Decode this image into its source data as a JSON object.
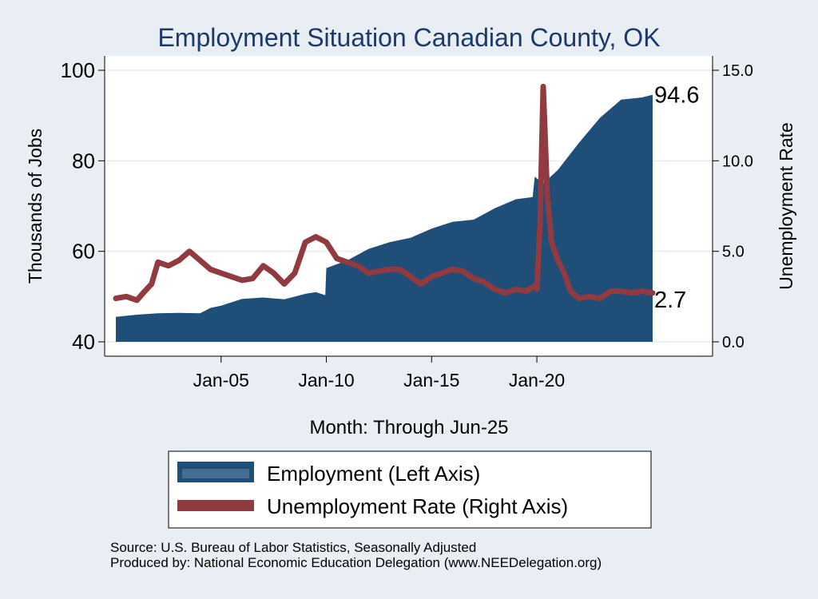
{
  "chart_data": {
    "type": "area",
    "title": "Employment Situation Canadian  County, OK",
    "xlabel": "Month: Through Jun-25",
    "ylabel_left": "Thousands of Jobs",
    "ylabel_right": "Unemployment Rate",
    "x_ticks": [
      "Jan-05",
      "Jan-10",
      "Jan-15",
      "Jan-20"
    ],
    "x_tick_years": [
      2005,
      2010,
      2015,
      2020
    ],
    "xlim": [
      1999.5,
      2028.0
    ],
    "left_ylim": [
      40,
      100
    ],
    "left_ticks": [
      40,
      60,
      80,
      100
    ],
    "right_ylim": [
      0,
      15
    ],
    "right_ticks": [
      "0.0",
      "5.0",
      "10.0",
      "15.0"
    ],
    "right_tick_values": [
      0,
      5,
      10,
      15
    ],
    "grid": true,
    "legend_position": "bottom",
    "end_labels": {
      "employment": "94.6",
      "unemployment": "2.7"
    },
    "colors": {
      "employment": "#1f4e79",
      "unemployment": "#913a3f",
      "title": "#1b3a6b",
      "plot_bg": "#ffffff",
      "page_bg": "#e8eef3"
    },
    "series": [
      {
        "name": "Employment (Left Axis)",
        "axis": "left",
        "kind": "area",
        "points": [
          [
            2000.0,
            45.5
          ],
          [
            2001.0,
            46.0
          ],
          [
            2002.0,
            46.3
          ],
          [
            2003.0,
            46.4
          ],
          [
            2004.0,
            46.3
          ],
          [
            2004.5,
            47.5
          ],
          [
            2005.0,
            48.0
          ],
          [
            2006.0,
            49.5
          ],
          [
            2007.0,
            49.8
          ],
          [
            2008.0,
            49.4
          ],
          [
            2009.0,
            50.6
          ],
          [
            2009.5,
            51.0
          ],
          [
            2009.95,
            50.3
          ],
          [
            2010.0,
            56.3
          ],
          [
            2011.0,
            58.0
          ],
          [
            2012.0,
            60.5
          ],
          [
            2013.0,
            62.0
          ],
          [
            2014.0,
            63.0
          ],
          [
            2015.0,
            65.0
          ],
          [
            2016.0,
            66.5
          ],
          [
            2017.0,
            67.0
          ],
          [
            2018.0,
            69.5
          ],
          [
            2019.0,
            71.5
          ],
          [
            2019.8,
            72.0
          ],
          [
            2019.9,
            76.5
          ],
          [
            2020.3,
            75.0
          ],
          [
            2021.0,
            78.0
          ],
          [
            2022.0,
            84.0
          ],
          [
            2023.0,
            89.5
          ],
          [
            2024.0,
            93.5
          ],
          [
            2025.0,
            94.0
          ],
          [
            2025.5,
            94.6
          ]
        ]
      },
      {
        "name": "Unemployment Rate (Right Axis)",
        "axis": "right",
        "kind": "line",
        "points": [
          [
            2000.0,
            2.4
          ],
          [
            2000.5,
            2.5
          ],
          [
            2001.0,
            2.3
          ],
          [
            2001.3,
            2.7
          ],
          [
            2001.7,
            3.2
          ],
          [
            2002.0,
            4.4
          ],
          [
            2002.5,
            4.2
          ],
          [
            2003.0,
            4.5
          ],
          [
            2003.5,
            5.0
          ],
          [
            2004.0,
            4.5
          ],
          [
            2004.5,
            4.0
          ],
          [
            2005.0,
            3.8
          ],
          [
            2005.5,
            3.6
          ],
          [
            2006.0,
            3.4
          ],
          [
            2006.5,
            3.5
          ],
          [
            2007.0,
            4.2
          ],
          [
            2007.5,
            3.8
          ],
          [
            2008.0,
            3.2
          ],
          [
            2008.5,
            3.8
          ],
          [
            2009.0,
            5.5
          ],
          [
            2009.5,
            5.8
          ],
          [
            2010.0,
            5.5
          ],
          [
            2010.5,
            4.6
          ],
          [
            2011.0,
            4.4
          ],
          [
            2011.5,
            4.2
          ],
          [
            2012.0,
            3.8
          ],
          [
            2012.5,
            3.9
          ],
          [
            2013.0,
            4.0
          ],
          [
            2013.5,
            4.0
          ],
          [
            2014.0,
            3.6
          ],
          [
            2014.5,
            3.2
          ],
          [
            2015.0,
            3.6
          ],
          [
            2015.5,
            3.8
          ],
          [
            2016.0,
            4.0
          ],
          [
            2016.5,
            3.9
          ],
          [
            2017.0,
            3.5
          ],
          [
            2017.5,
            3.3
          ],
          [
            2018.0,
            2.9
          ],
          [
            2018.5,
            2.7
          ],
          [
            2019.0,
            2.9
          ],
          [
            2019.5,
            2.8
          ],
          [
            2019.9,
            3.1
          ],
          [
            2020.0,
            2.9
          ],
          [
            2020.15,
            6.5
          ],
          [
            2020.3,
            14.1
          ],
          [
            2020.5,
            8.0
          ],
          [
            2020.7,
            5.5
          ],
          [
            2021.0,
            4.5
          ],
          [
            2021.3,
            3.8
          ],
          [
            2021.6,
            2.8
          ],
          [
            2022.0,
            2.4
          ],
          [
            2022.5,
            2.5
          ],
          [
            2023.0,
            2.4
          ],
          [
            2023.5,
            2.8
          ],
          [
            2024.0,
            2.8
          ],
          [
            2024.5,
            2.7
          ],
          [
            2025.0,
            2.8
          ],
          [
            2025.5,
            2.7
          ]
        ]
      }
    ],
    "source_note": "Source: U.S. Bureau of Labor Statistics, Seasonally Adjusted",
    "producer_note": "Produced by: National Economic Education Delegation (www.NEEDelegation.org)"
  }
}
